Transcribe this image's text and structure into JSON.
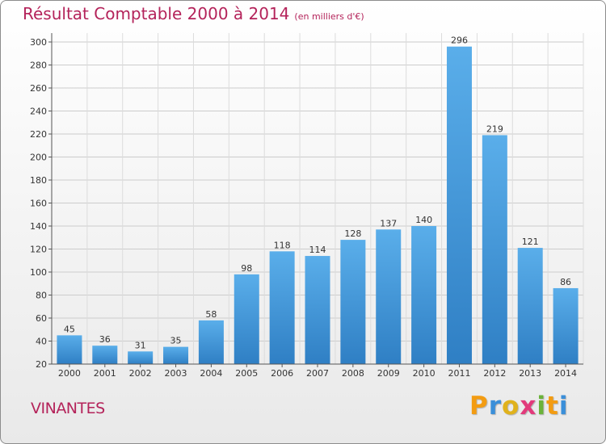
{
  "title": "Résultat Comptable 2000 à 2014",
  "subtitle": "(en milliers d'€)",
  "town": "VINANTES",
  "logo": {
    "letters": [
      "P",
      "r",
      "o",
      "x",
      "i",
      "t",
      "i"
    ],
    "colors": [
      "#f39c12",
      "#3a8fd9",
      "#e0b21c",
      "#e23a7b",
      "#6bb33a",
      "#f39c12",
      "#3a8fd9"
    ]
  },
  "colors": {
    "bar": "#4a9fe0",
    "title": "#b4235a",
    "grid": "#cccccc"
  },
  "chart_data": {
    "type": "bar",
    "title": "Résultat Comptable 2000 à 2014",
    "subtitle": "(en milliers d'€)",
    "xlabel": "",
    "ylabel": "",
    "categories": [
      "2000",
      "2001",
      "2002",
      "2003",
      "2004",
      "2005",
      "2006",
      "2007",
      "2008",
      "2009",
      "2010",
      "2011",
      "2012",
      "2013",
      "2014"
    ],
    "values": [
      45,
      36,
      31,
      35,
      58,
      98,
      118,
      114,
      128,
      137,
      140,
      296,
      219,
      121,
      86
    ],
    "ylim": [
      20,
      300
    ],
    "yticks": [
      20,
      40,
      60,
      80,
      100,
      120,
      140,
      160,
      180,
      200,
      220,
      240,
      260,
      280,
      300
    ],
    "grid": true,
    "legend": "none"
  }
}
